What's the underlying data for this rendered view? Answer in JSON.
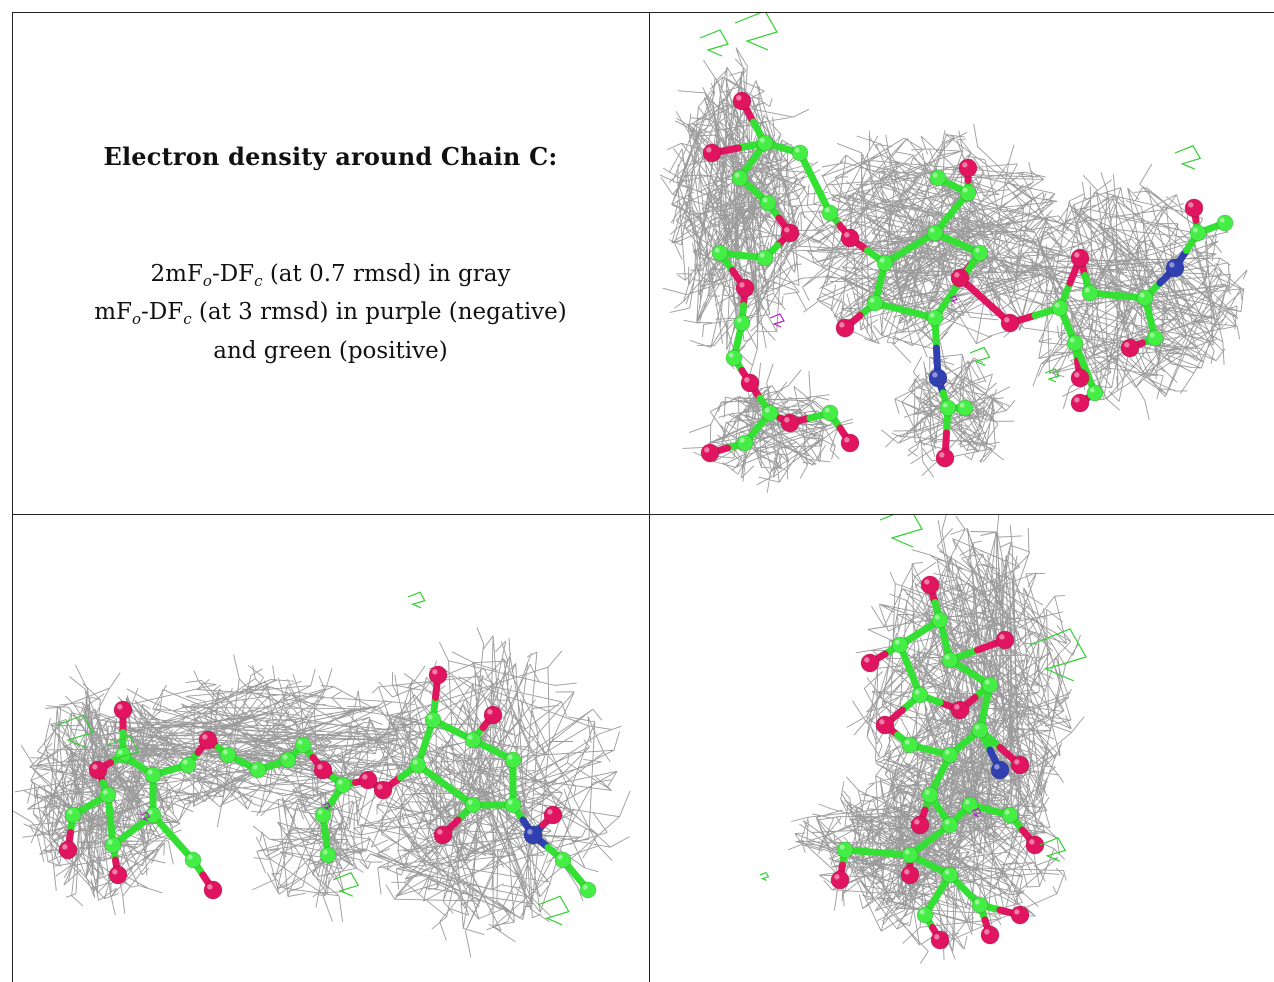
{
  "caption": {
    "title": "Electron density around Chain C:",
    "line1": {
      "pre": "2mF",
      "sub1": "o",
      "mid": "-DF",
      "sub2": "c",
      "post": " (at 0.7 rmsd) in gray"
    },
    "line2": {
      "pre": "mF",
      "sub1": "o",
      "mid": "-DF",
      "sub2": "c",
      "post": " (at 3 rmsd) in purple (negative)"
    },
    "line3": "and green (positive)"
  },
  "colors": {
    "mesh_gray": "#8a8a8a",
    "bond_green": "#33e033",
    "atom_green": "#44ee44",
    "oxygen_pink": "#e0145f",
    "nitrogen_blue": "#3040b0",
    "negative_purple": "#b020c0",
    "positive_green": "#30d030"
  },
  "panels": [
    {
      "name": "view-top-right"
    },
    {
      "name": "view-bottom-left"
    },
    {
      "name": "view-bottom-right"
    }
  ]
}
